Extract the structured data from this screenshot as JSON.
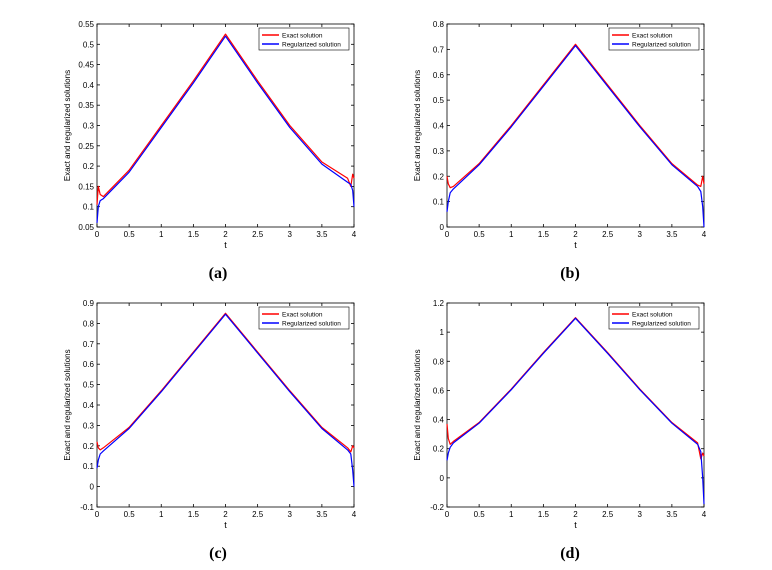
{
  "colors": {
    "exact": "#ff0000",
    "regularized": "#0000ff"
  },
  "chart_data": [
    {
      "type": "line",
      "panel_label": "(a)",
      "xlabel": "t",
      "ylabel": "Exact and regularized solutions",
      "xlim": [
        0,
        4
      ],
      "ylim": [
        0.05,
        0.55
      ],
      "xticks": [
        "0",
        "0.5",
        "1",
        "1.5",
        "2",
        "2.5",
        "3",
        "3.5",
        "4"
      ],
      "yticks": [
        "0.05",
        "0.1",
        "0.15",
        "0.2",
        "0.25",
        "0.3",
        "0.35",
        "0.4",
        "0.45",
        "0.5",
        "0.55"
      ],
      "legend_position": "top-right",
      "series": [
        {
          "name": "Exact solution",
          "x": [
            0,
            0.02,
            0.05,
            0.1,
            0.5,
            1.0,
            1.5,
            2.0,
            2.5,
            3.0,
            3.5,
            3.9,
            3.95,
            3.98,
            4.0
          ],
          "y": [
            0.105,
            0.15,
            0.13,
            0.125,
            0.19,
            0.3,
            0.41,
            0.525,
            0.41,
            0.3,
            0.21,
            0.17,
            0.15,
            0.18,
            0.17
          ]
        },
        {
          "name": "Regularized solution",
          "x": [
            0,
            0.02,
            0.05,
            0.1,
            0.5,
            1.0,
            1.5,
            2.0,
            2.5,
            3.0,
            3.5,
            3.9,
            3.95,
            3.98,
            4.0
          ],
          "y": [
            0.06,
            0.1,
            0.115,
            0.12,
            0.185,
            0.295,
            0.405,
            0.52,
            0.405,
            0.295,
            0.205,
            0.16,
            0.155,
            0.14,
            0.1
          ]
        }
      ]
    },
    {
      "type": "line",
      "panel_label": "(b)",
      "xlabel": "t",
      "ylabel": "Exact and regularized solutions",
      "xlim": [
        0,
        4
      ],
      "ylim": [
        0,
        0.8
      ],
      "xticks": [
        "0",
        "0.5",
        "1",
        "1.5",
        "2",
        "2.5",
        "3",
        "3.5",
        "4"
      ],
      "yticks": [
        "0",
        "0.1",
        "0.2",
        "0.3",
        "0.4",
        "0.5",
        "0.6",
        "0.7",
        "0.8"
      ],
      "legend_position": "top-right",
      "series": [
        {
          "name": "Exact solution",
          "x": [
            0,
            0.02,
            0.05,
            0.1,
            0.5,
            1.0,
            1.5,
            2.0,
            2.5,
            3.0,
            3.5,
            3.9,
            3.95,
            3.98,
            4.0
          ],
          "y": [
            0.2,
            0.17,
            0.155,
            0.16,
            0.25,
            0.4,
            0.56,
            0.72,
            0.56,
            0.4,
            0.25,
            0.165,
            0.16,
            0.2,
            0.17
          ]
        },
        {
          "name": "Regularized solution",
          "x": [
            0,
            0.02,
            0.05,
            0.1,
            0.5,
            1.0,
            1.5,
            2.0,
            2.5,
            3.0,
            3.5,
            3.9,
            3.95,
            3.98,
            4.0
          ],
          "y": [
            0.06,
            0.1,
            0.135,
            0.15,
            0.245,
            0.395,
            0.555,
            0.715,
            0.555,
            0.395,
            0.245,
            0.16,
            0.14,
            0.08,
            0.0
          ]
        }
      ]
    },
    {
      "type": "line",
      "panel_label": "(c)",
      "xlabel": "t",
      "ylabel": "Exact and regularized solutions",
      "xlim": [
        0,
        4
      ],
      "ylim": [
        -0.1,
        0.9
      ],
      "xticks": [
        "0",
        "0.5",
        "1",
        "1.5",
        "2",
        "2.5",
        "3",
        "3.5",
        "4"
      ],
      "yticks": [
        "-0.1",
        "0",
        "0.1",
        "0.2",
        "0.3",
        "0.4",
        "0.5",
        "0.6",
        "0.7",
        "0.8",
        "0.9"
      ],
      "legend_position": "top-right",
      "series": [
        {
          "name": "Exact solution",
          "x": [
            0,
            0.02,
            0.05,
            0.1,
            0.5,
            1.0,
            1.5,
            2.0,
            2.5,
            3.0,
            3.5,
            3.9,
            3.95,
            3.98,
            4.0
          ],
          "y": [
            0.22,
            0.19,
            0.18,
            0.19,
            0.29,
            0.47,
            0.66,
            0.85,
            0.66,
            0.47,
            0.29,
            0.19,
            0.17,
            0.2,
            0.19
          ]
        },
        {
          "name": "Regularized solution",
          "x": [
            0,
            0.02,
            0.05,
            0.1,
            0.5,
            1.0,
            1.5,
            2.0,
            2.5,
            3.0,
            3.5,
            3.9,
            3.95,
            3.98,
            4.0
          ],
          "y": [
            0.09,
            0.13,
            0.16,
            0.175,
            0.285,
            0.465,
            0.655,
            0.845,
            0.655,
            0.465,
            0.285,
            0.18,
            0.16,
            0.08,
            0.0
          ]
        }
      ]
    },
    {
      "type": "line",
      "panel_label": "(d)",
      "xlabel": "t",
      "ylabel": "Exact and regularized solutions",
      "xlim": [
        0,
        4
      ],
      "ylim": [
        -0.2,
        1.2
      ],
      "xticks": [
        "0",
        "0.5",
        "1",
        "1.5",
        "2",
        "2.5",
        "3",
        "3.5",
        "4"
      ],
      "yticks": [
        "-0.2",
        "0",
        "0.2",
        "0.4",
        "0.6",
        "0.8",
        "1",
        "1.2"
      ],
      "legend_position": "top-right",
      "series": [
        {
          "name": "Exact solution",
          "x": [
            0,
            0.02,
            0.05,
            0.1,
            0.5,
            1.0,
            1.5,
            2.0,
            2.5,
            3.0,
            3.5,
            3.9,
            3.95,
            3.98,
            4.0
          ],
          "y": [
            0.37,
            0.27,
            0.23,
            0.25,
            0.38,
            0.61,
            0.86,
            1.1,
            0.86,
            0.61,
            0.38,
            0.24,
            0.13,
            0.17,
            0.15
          ]
        },
        {
          "name": "Regularized solution",
          "x": [
            0,
            0.02,
            0.05,
            0.1,
            0.5,
            1.0,
            1.5,
            2.0,
            2.5,
            3.0,
            3.5,
            3.9,
            3.95,
            3.98,
            4.0
          ],
          "y": [
            0.12,
            0.17,
            0.21,
            0.24,
            0.375,
            0.605,
            0.855,
            1.095,
            0.855,
            0.605,
            0.375,
            0.23,
            0.18,
            0.0,
            -0.18
          ]
        }
      ]
    }
  ]
}
